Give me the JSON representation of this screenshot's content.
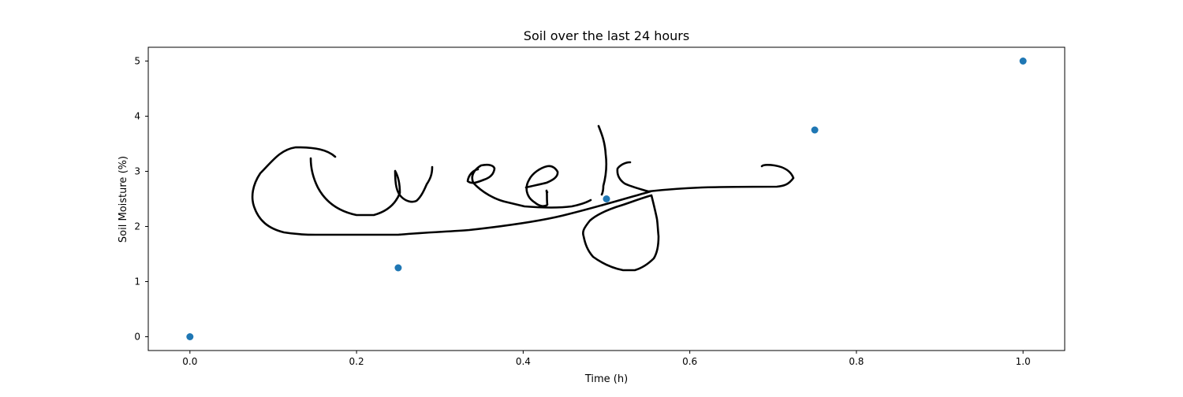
{
  "chart_data": {
    "type": "scatter",
    "title": "Soil over the last 24 hours",
    "xlabel": "Time (h)",
    "ylabel": "Soil Moisture (%)",
    "xlim": [
      -0.05,
      1.05
    ],
    "ylim": [
      -0.25,
      5.25
    ],
    "x_ticks": [
      0.0,
      0.2,
      0.4,
      0.6,
      0.8,
      1.0
    ],
    "x_tick_labels": [
      "0.0",
      "0.2",
      "0.4",
      "0.6",
      "0.8",
      "1.0"
    ],
    "y_ticks": [
      0,
      1,
      2,
      3,
      4,
      5
    ],
    "y_tick_labels": [
      "0",
      "1",
      "2",
      "3",
      "4",
      "5"
    ],
    "grid": false,
    "series": [
      {
        "color": "#1f77b4",
        "x": [
          0.0,
          0.25,
          0.5,
          0.75,
          1.0
        ],
        "y": [
          0.0,
          1.25,
          2.5,
          3.75,
          5.0
        ]
      }
    ],
    "overlay": {
      "kind": "handwritten signature",
      "color": "#000000"
    }
  }
}
